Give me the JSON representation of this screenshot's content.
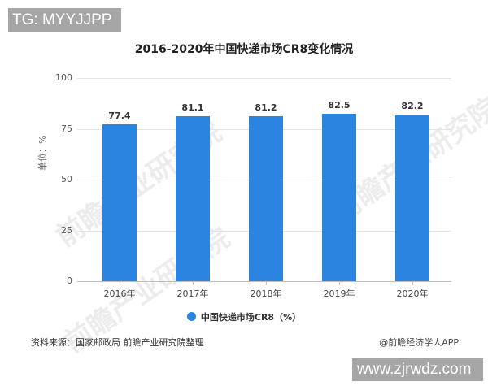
{
  "overlays": {
    "top_badge": "TG: MYYJJPP",
    "bottom_badge": "www.zjrwdz.com",
    "watermark_text": "前瞻产业研究院"
  },
  "colors": {
    "bar": "#2a84e0",
    "grid": "#e3e3e3",
    "axis": "#bdbdbd"
  },
  "chart_data": {
    "type": "bar",
    "title": "2016-2020年中国快递市场CR8变化情况",
    "categories": [
      "2016年",
      "2017年",
      "2018年",
      "2019年",
      "2020年"
    ],
    "series": [
      {
        "name": "中国快递市场CR8（%）",
        "values": [
          77.4,
          81.1,
          81.2,
          82.5,
          82.2
        ]
      }
    ],
    "value_labels": [
      "77.4",
      "81.1",
      "81.2",
      "82.5",
      "82.2"
    ],
    "xlabel": "",
    "ylabel": "单位：%",
    "ylim": [
      0,
      100
    ],
    "yticks": [
      "100",
      "75",
      "50",
      "25",
      "0"
    ],
    "grid": true,
    "legend_position": "bottom"
  },
  "footer": {
    "source": "资料来源：国家邮政局 前瞻产业研究院整理",
    "credit": "@前瞻经济学人APP"
  }
}
